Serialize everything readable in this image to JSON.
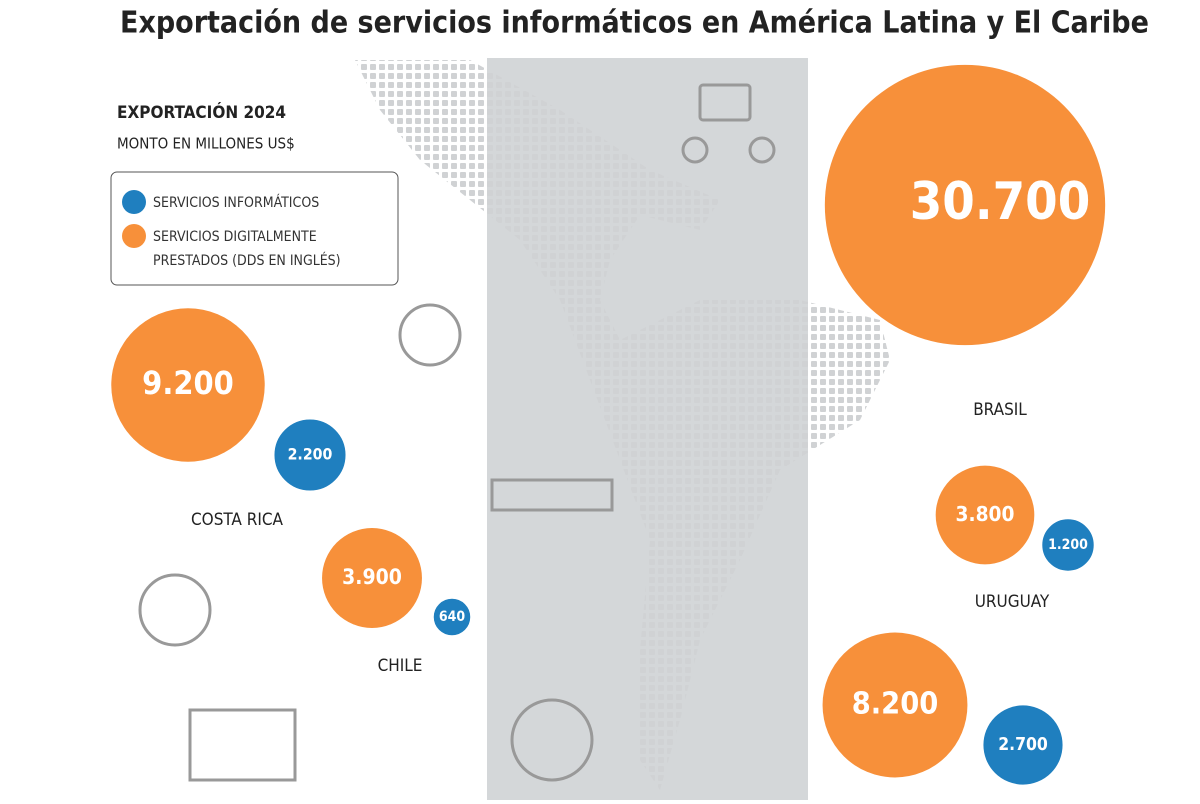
{
  "chart_data": {
    "type": "bubble",
    "title": "Exportación de servicios informáticos en América Latina y El Caribe",
    "subtitle": "EXPORTACIÓN 2024",
    "unit_label": "MONTO EN MILLONES US$",
    "categories": [
      "BRASIL",
      "COSTA RICA",
      "CHILE",
      "URUGUAY",
      null
    ],
    "series": [
      {
        "name": "SERVICIOS INFORMÁTICOS",
        "color": "#1f7fbf",
        "values": [
          null,
          2200,
          640,
          1200,
          2700
        ],
        "value_labels": [
          null,
          "2.200",
          "640",
          "1.200",
          "2.700"
        ]
      },
      {
        "name": "SERVICIOS DIGITALMENTE PRESTADOS (DDS EN INGLÉS)",
        "color": "#f7903a",
        "values": [
          30700,
          9200,
          3900,
          3800,
          8200
        ],
        "value_labels": [
          "30.700",
          "9.200",
          "3.900",
          "3.800",
          "8.200"
        ]
      }
    ]
  }
}
